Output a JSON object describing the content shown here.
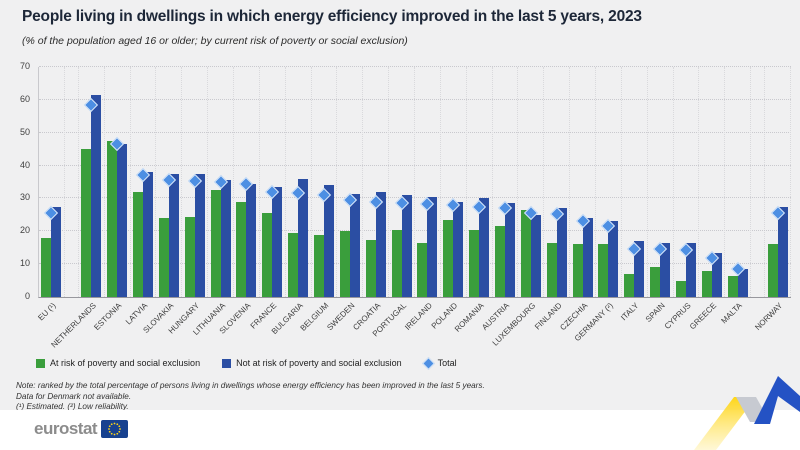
{
  "header": {
    "title": "People living in dwellings in which energy efficiency improved in the last 5 years, 2023",
    "subtitle": "(% of the population aged 16 or older; by current risk of poverty or social exclusion)"
  },
  "legend": {
    "at_risk": "At risk of poverty and social exclusion",
    "not_at_risk": "Not at risk of poverty and social exclusion",
    "total": "Total"
  },
  "notes": {
    "line1": "Note: ranked by the total percentage of persons living in dwellings whose energy efficiency has been improved in the last 5 years.",
    "line2": "Data for Denmark not available.",
    "line3": "(¹) Estimated. (²) Low reliability."
  },
  "footer": {
    "brand": "eurostat"
  },
  "chart_data": {
    "type": "bar",
    "title": "People living in dwellings in which energy efficiency improved in the last 5 years, 2023",
    "subtitle": "(% of the population aged 16 or older; by current risk of poverty or social exclusion)",
    "ylabel": "% of population aged 16 or older",
    "ylim": [
      0,
      70
    ],
    "yticks": [
      0,
      10,
      20,
      30,
      40,
      50,
      60,
      70
    ],
    "grid": true,
    "legend_position": "bottom",
    "categories": [
      "EU (¹)",
      "NETHERLANDS",
      "ESTONIA",
      "LATVIA",
      "SLOVAKIA",
      "HUNGARY",
      "LITHUANIA",
      "SLOVENIA",
      "FRANCE",
      "BULGARIA",
      "BELGIUM",
      "SWEDEN",
      "CROATIA",
      "PORTUGAL",
      "IRELAND",
      "POLAND",
      "ROMANIA",
      "AUSTRIA",
      "LUXEMBOURG",
      "FINLAND",
      "CZECHIA",
      "GERMANY (²)",
      "ITALY",
      "SPAIN",
      "CYPRUS",
      "GREECE",
      "MALTA",
      "NORWAY"
    ],
    "gap_after_indices": [
      0,
      26
    ],
    "colors": {
      "at_risk": "#3a9e3c",
      "not_at_risk": "#2b4ea3",
      "total": "#4d8fe3"
    },
    "series": [
      {
        "name": "At risk of poverty and social exclusion",
        "marker": "bar",
        "values": [
          18,
          45,
          47.5,
          32,
          24,
          24.5,
          32.5,
          29,
          25.5,
          19.5,
          19,
          20,
          17.5,
          20.5,
          16.5,
          23.5,
          20.5,
          21.5,
          26.5,
          16.5,
          16,
          16,
          7,
          9,
          5,
          8,
          6.5,
          16
        ]
      },
      {
        "name": "Not at risk of poverty and social exclusion",
        "marker": "bar",
        "values": [
          27.5,
          61.5,
          46.5,
          38,
          37.5,
          37.5,
          35.5,
          34.5,
          33.5,
          36,
          34,
          31.5,
          32,
          31,
          30.5,
          29,
          30,
          28.5,
          25,
          27,
          24,
          23,
          17,
          16.5,
          16.5,
          13.5,
          8.5,
          27.5
        ]
      },
      {
        "name": "Total",
        "marker": "diamond",
        "values": [
          25.5,
          58.5,
          46.6,
          37,
          35.5,
          35.4,
          35,
          34.3,
          32,
          31.7,
          31,
          29.5,
          29,
          28.7,
          28.4,
          28,
          27.5,
          27,
          25.5,
          25.2,
          23,
          21.5,
          14.7,
          14.5,
          14.3,
          12,
          8.4,
          25.5
        ]
      }
    ]
  }
}
